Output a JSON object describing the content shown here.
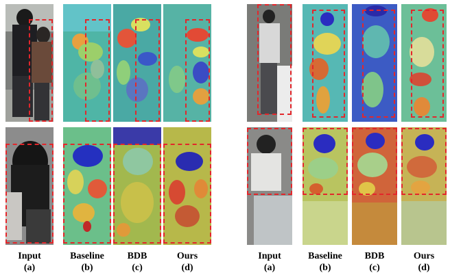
{
  "labels": [
    {
      "name": "Input",
      "tag": "(a)"
    },
    {
      "name": "Baseline",
      "tag": "(b)"
    },
    {
      "name": "BDB",
      "tag": "(c)"
    },
    {
      "name": "Ours",
      "tag": "(d)"
    },
    {
      "name": "Input",
      "tag": "(a)"
    },
    {
      "name": "Baseline",
      "tag": "(b)"
    },
    {
      "name": "BDB",
      "tag": "(c)"
    },
    {
      "name": "Ours",
      "tag": "(d)"
    }
  ],
  "colors": {
    "dashed_box": "#e3262b",
    "heat_low": "#2b3bd6",
    "heat_high": "#e03a2a"
  }
}
